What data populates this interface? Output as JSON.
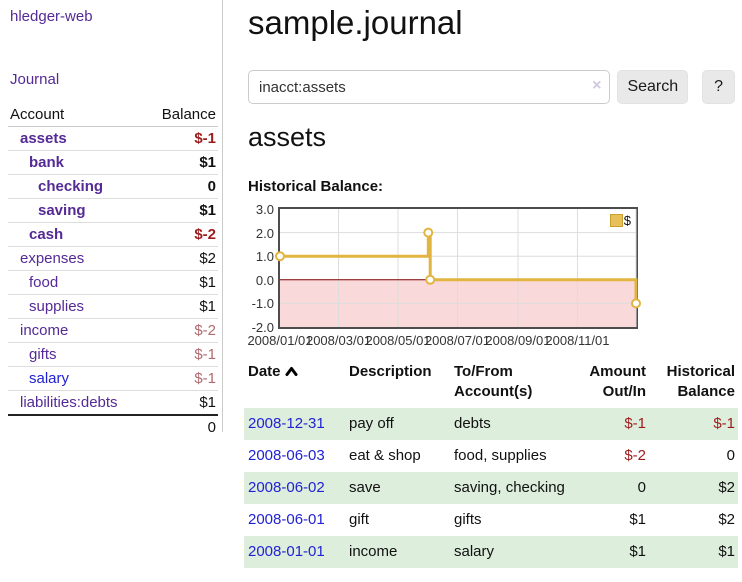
{
  "sidebar": {
    "app_title": "hledger-web",
    "journal_link": "Journal",
    "accounts_header": {
      "account": "Account",
      "balance": "Balance"
    },
    "accounts": [
      {
        "name": "assets",
        "balance": "$-1",
        "level": 1,
        "bold": true,
        "balance_style": "neg-strong",
        "link_style": "visited"
      },
      {
        "name": "bank",
        "balance": "$1",
        "level": 2,
        "bold": true,
        "balance_style": "pos",
        "link_style": "visited"
      },
      {
        "name": "checking",
        "balance": "0",
        "level": 3,
        "bold": true,
        "balance_style": "pos",
        "link_style": "visited"
      },
      {
        "name": "saving",
        "balance": "$1",
        "level": 3,
        "bold": true,
        "balance_style": "pos",
        "link_style": "visited"
      },
      {
        "name": "cash",
        "balance": "$-2",
        "level": 2,
        "bold": true,
        "balance_style": "neg-strong",
        "link_style": "visited"
      },
      {
        "name": "expenses",
        "balance": "$2",
        "level": 1,
        "bold": false,
        "balance_style": "pos",
        "link_style": "visited"
      },
      {
        "name": "food",
        "balance": "$1",
        "level": 2,
        "bold": false,
        "balance_style": "pos",
        "link_style": "visited"
      },
      {
        "name": "supplies",
        "balance": "$1",
        "level": 2,
        "bold": false,
        "balance_style": "pos",
        "link_style": "visited"
      },
      {
        "name": "income",
        "balance": "$-2",
        "level": 1,
        "bold": false,
        "balance_style": "neg-muted",
        "link_style": "visited"
      },
      {
        "name": "gifts",
        "balance": "$-1",
        "level": 2,
        "bold": false,
        "balance_style": "neg-muted",
        "link_style": "visited"
      },
      {
        "name": "salary",
        "balance": "$-1",
        "level": 2,
        "bold": false,
        "balance_style": "neg-muted",
        "link_style": "unvisited"
      },
      {
        "name": "liabilities:debts",
        "balance": "$1",
        "level": 1,
        "bold": false,
        "balance_style": "pos",
        "link_style": "visited"
      }
    ],
    "total": "0"
  },
  "main": {
    "title": "sample.journal",
    "search": {
      "value": "inacct:assets",
      "button": "Search",
      "help": "?",
      "clear_icon": "×"
    },
    "account_heading": "assets"
  },
  "chart_data": {
    "type": "line",
    "title": "Historical Balance:",
    "legend": [
      {
        "label": "$",
        "color": "#e8c05a"
      }
    ],
    "x_range": [
      "2008-01-01",
      "2008-12-31"
    ],
    "ylim": [
      -2,
      3
    ],
    "yticks": [
      3.0,
      2.0,
      1.0,
      0.0,
      -1.0,
      -2.0
    ],
    "xticks": [
      {
        "date": "2008-01-01",
        "label": "2008/01/01"
      },
      {
        "date": "2008-03-01",
        "label": "2008/03/01"
      },
      {
        "date": "2008-05-01",
        "label": "2008/05/01"
      },
      {
        "date": "2008-07-01",
        "label": "2008/07/01"
      },
      {
        "date": "2008-09-01",
        "label": "2008/09/01"
      },
      {
        "date": "2008-11-01",
        "label": "2008/11/01"
      }
    ],
    "xgrid": [
      "2008-03-01",
      "2008-05-01",
      "2008-07-01",
      "2008-09-01",
      "2008-11-01",
      "2008-12-31"
    ],
    "series": [
      {
        "name": "$",
        "step": true,
        "points": [
          {
            "date": "2008-01-01",
            "value": 1
          },
          {
            "date": "2008-06-01",
            "value": 2
          },
          {
            "date": "2008-06-03",
            "value": 0
          },
          {
            "date": "2008-12-31",
            "value": -1
          }
        ]
      }
    ],
    "colors": {
      "line": "#e2b440",
      "marker_fill": "#ffffff",
      "negative_region": "#f9d9d9",
      "zero_line": "#7d0000",
      "grid": "#ddd"
    }
  },
  "register": {
    "headers": {
      "date": "Date",
      "description": "Description",
      "tofrom_1": "To/From",
      "tofrom_2": "Account(s)",
      "amount_1": "Amount",
      "amount_2": "Out/In",
      "historical_1": "Historical",
      "historical_2": "Balance"
    },
    "rows": [
      {
        "date": "2008-12-31",
        "description": "pay off",
        "accounts": "debts",
        "amount": "$-1",
        "amount_neg": true,
        "balance": "$-1",
        "balance_neg": true
      },
      {
        "date": "2008-06-03",
        "description": "eat & shop",
        "accounts": "food, supplies",
        "amount": "$-2",
        "amount_neg": true,
        "balance": "0",
        "balance_neg": false
      },
      {
        "date": "2008-06-02",
        "description": "save",
        "accounts": "saving, checking",
        "amount": "0",
        "amount_neg": false,
        "balance": "$2",
        "balance_neg": false
      },
      {
        "date": "2008-06-01",
        "description": "gift",
        "accounts": "gifts",
        "amount": "$1",
        "amount_neg": false,
        "balance": "$2",
        "balance_neg": false
      },
      {
        "date": "2008-01-01",
        "description": "income",
        "accounts": "salary",
        "amount": "$1",
        "amount_neg": false,
        "balance": "$1",
        "balance_neg": false
      }
    ]
  }
}
